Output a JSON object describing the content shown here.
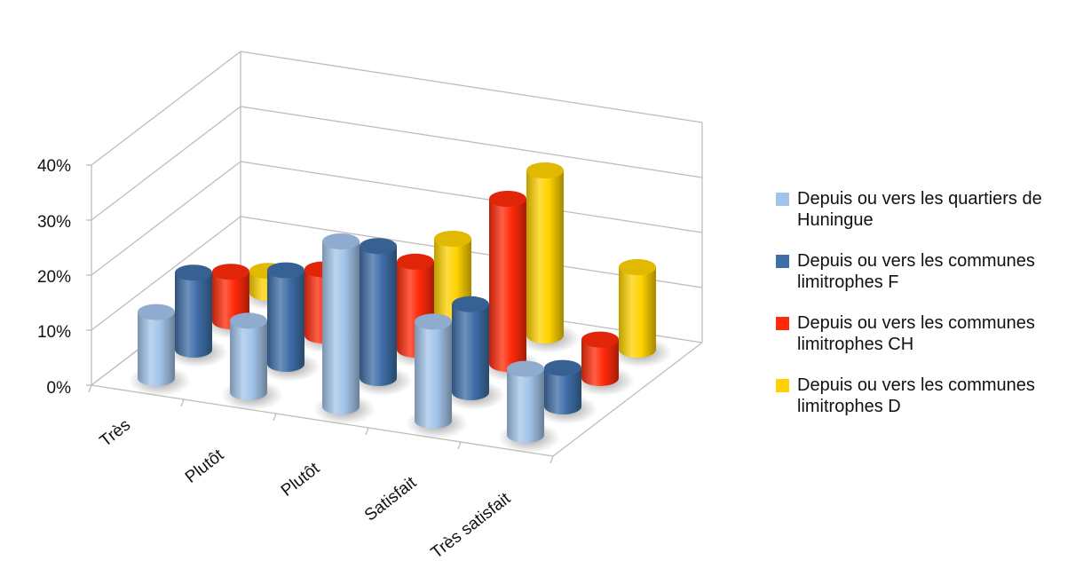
{
  "chart_data": {
    "type": "bar",
    "style": "3d-cylinder",
    "categories": [
      "Très",
      "Plutôt",
      "Plutôt",
      "Satisfait",
      "Très satisfait"
    ],
    "y_ticks": [
      "0%",
      "10%",
      "20%",
      "30%",
      "40%"
    ],
    "ylim": [
      0,
      40
    ],
    "grid": true,
    "legend_position": "right",
    "series": [
      {
        "name": "Depuis ou vers les quartiers de Huningue",
        "color": "#a3c4ea",
        "values": [
          12,
          13,
          30,
          18,
          12
        ]
      },
      {
        "name": "Depuis ou vers les communes limitrophes F",
        "color": "#3e6ea6",
        "values": [
          14,
          17,
          24,
          16,
          7
        ]
      },
      {
        "name": "Depuis ou vers les communes limitrophes CH",
        "color": "#ff2a0a",
        "values": [
          9,
          12,
          16,
          30,
          7
        ]
      },
      {
        "name": "Depuis ou vers les communes limitrophes D",
        "color": "#ffd200",
        "values": [
          4,
          7,
          15,
          30,
          15
        ]
      }
    ]
  }
}
